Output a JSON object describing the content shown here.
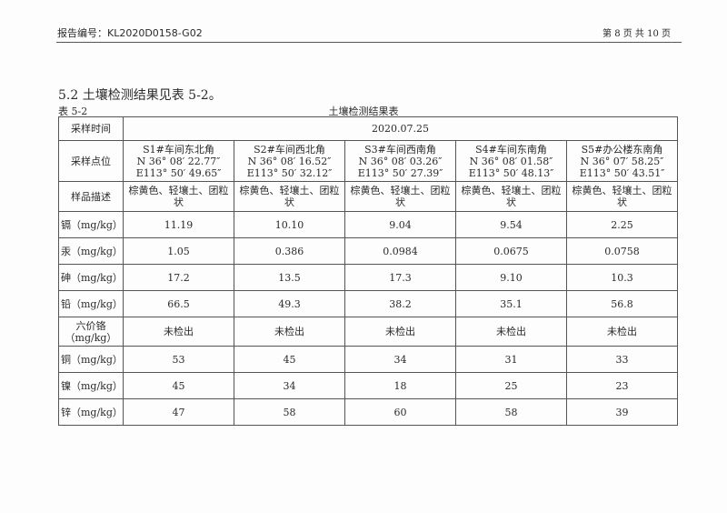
{
  "header": {
    "report_no": "报告编号：KL2020D0158-G02",
    "page": "第 8 页 共 10 页"
  },
  "section_heading": "5.2 土壤检测结果见表 5-2。",
  "table_number": "表 5-2",
  "table_title": "土壤检测结果表",
  "table": {
    "sampling_time_label": "采样时间",
    "sampling_time": "2020.07.25",
    "location_label": "采样点位",
    "locations": [
      {
        "name": "S1#车间东北角",
        "n": "N 36° 08′ 22.77″",
        "e": "E113° 50′ 49.65″"
      },
      {
        "name": "S2#车间西北角",
        "n": "N 36° 08′ 16.52″",
        "e": "E113° 50′ 32.12″"
      },
      {
        "name": "S3#车间西南角",
        "n": "N 36° 08′ 03.26″",
        "e": "E113° 50′ 27.39″"
      },
      {
        "name": "S4#车间东南角",
        "n": "N 36° 08′ 01.58″",
        "e": "E113° 50′ 48.13″"
      },
      {
        "name": "S5#办公楼东南角",
        "n": "N 36° 07′ 58.25″",
        "e": "E113° 50′ 43.51″"
      }
    ],
    "desc_label": "样品描述",
    "descriptions": [
      "棕黄色、轻壤土、团粒状",
      "棕黄色、轻壤土、团粒状",
      "棕黄色、轻壤土、团粒状",
      "棕黄色、轻壤土、团粒状",
      "棕黄色、轻壤土、团粒状"
    ],
    "rows": [
      {
        "label": "镉（mg/kg）",
        "values": [
          "11.19",
          "10.10",
          "9.04",
          "9.54",
          "2.25"
        ]
      },
      {
        "label": "汞（mg/kg）",
        "values": [
          "1.05",
          "0.386",
          "0.0984",
          "0.0675",
          "0.0758"
        ]
      },
      {
        "label": "砷（mg/kg）",
        "values": [
          "17.2",
          "13.5",
          "17.3",
          "9.10",
          "10.3"
        ]
      },
      {
        "label": "铅（mg/kg）",
        "values": [
          "66.5",
          "49.3",
          "38.2",
          "35.1",
          "56.8"
        ]
      },
      {
        "label": "六价铬（mg/kg）",
        "values": [
          "未检出",
          "未检出",
          "未检出",
          "未检出",
          "未检出"
        ]
      },
      {
        "label": "铜（mg/kg）",
        "values": [
          "53",
          "45",
          "34",
          "31",
          "33"
        ]
      },
      {
        "label": "镍（mg/kg）",
        "values": [
          "45",
          "34",
          "18",
          "25",
          "23"
        ]
      },
      {
        "label": "锌（mg/kg）",
        "values": [
          "47",
          "58",
          "60",
          "58",
          "39"
        ]
      }
    ]
  }
}
